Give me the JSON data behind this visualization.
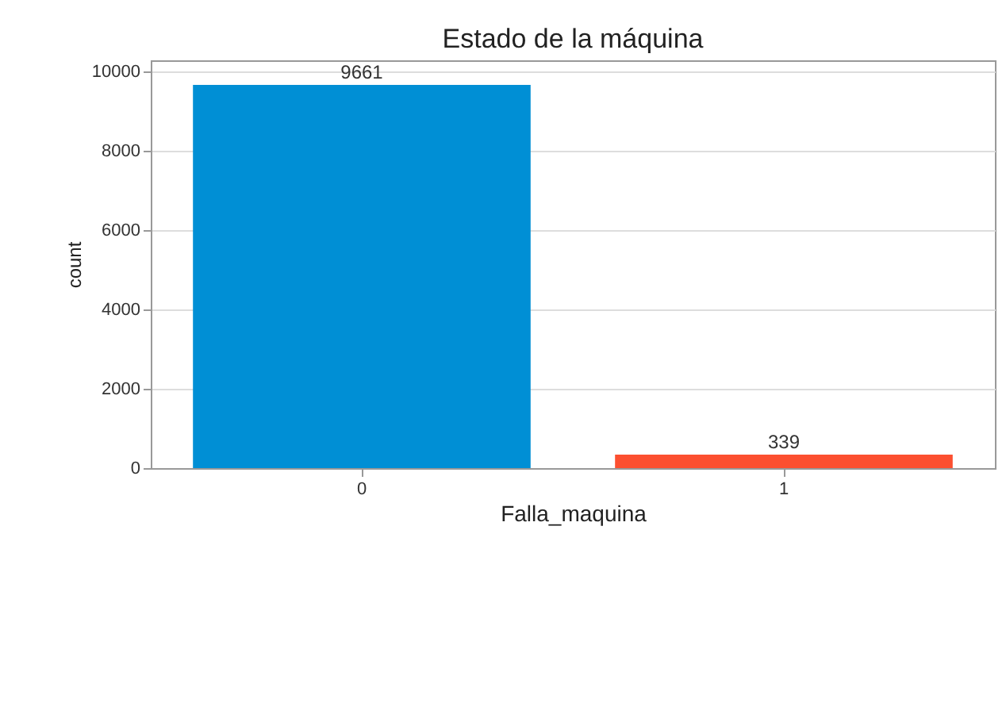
{
  "chart_data": {
    "type": "bar",
    "title": "Estado de la máquina",
    "xlabel": "Falla_maquina",
    "ylabel": "count",
    "categories": [
      "0",
      "1"
    ],
    "values": [
      9661,
      339
    ],
    "colors": [
      "#008fd5",
      "#fc4f30"
    ],
    "ylim": [
      0,
      10280
    ],
    "yticks": [
      0,
      2000,
      4000,
      6000,
      8000,
      10000
    ],
    "grid": "y",
    "data_labels": true
  }
}
